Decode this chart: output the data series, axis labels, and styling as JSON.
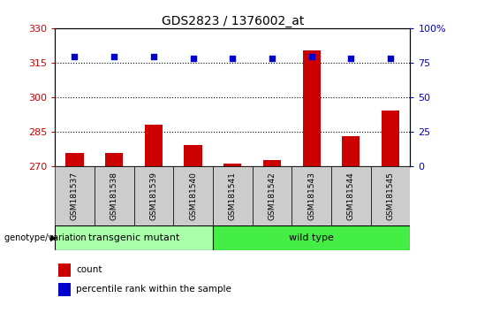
{
  "title": "GDS2823 / 1376002_at",
  "samples": [
    "GSM181537",
    "GSM181538",
    "GSM181539",
    "GSM181540",
    "GSM181541",
    "GSM181542",
    "GSM181543",
    "GSM181544",
    "GSM181545"
  ],
  "bar_values": [
    275.5,
    275.5,
    288.0,
    279.0,
    271.0,
    272.5,
    320.5,
    283.0,
    294.0
  ],
  "percentile_values": [
    317.5,
    317.5,
    317.5,
    317.0,
    317.0,
    317.0,
    317.5,
    317.0,
    317.0
  ],
  "ymin": 270,
  "ymax": 330,
  "yticks_left": [
    270,
    285,
    300,
    315,
    330
  ],
  "yticks_right": [
    0,
    25,
    50,
    75,
    100
  ],
  "dotted_lines": [
    315,
    300,
    285
  ],
  "bar_color": "#cc0000",
  "scatter_color": "#0000cc",
  "bar_bottom": 270,
  "trans_count": 4,
  "wild_count": 5,
  "transgenic_label": "transgenic mutant",
  "wildtype_label": "wild type",
  "genotype_label": "genotype/variation",
  "legend_count": "count",
  "legend_percentile": "percentile rank within the sample",
  "transgenic_color": "#aaffaa",
  "wildtype_color": "#44ee44",
  "sample_box_color": "#cccccc",
  "axis_left_color": "#cc0000",
  "axis_right_color": "#0000cc",
  "fig_width": 5.4,
  "fig_height": 3.54,
  "dpi": 100
}
